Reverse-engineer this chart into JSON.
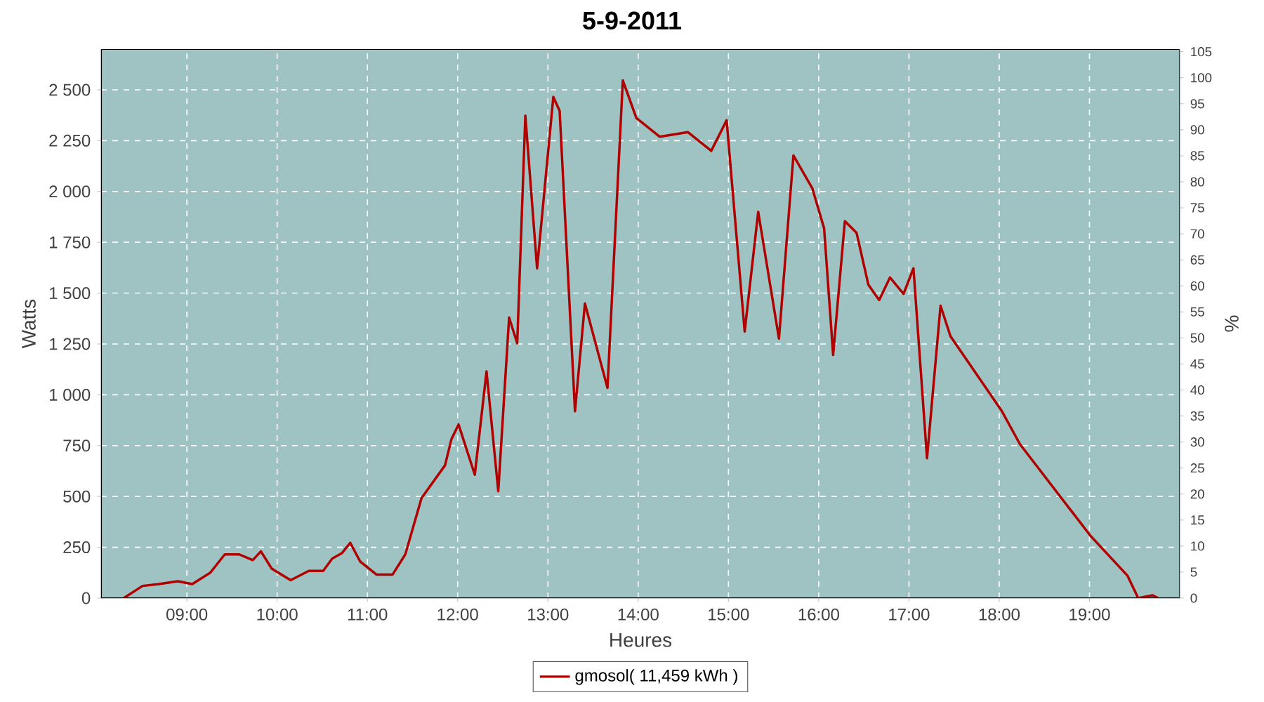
{
  "chart_data": {
    "type": "line",
    "title": "5-9-2011",
    "xlabel": "Heures",
    "ylabel": "Watts",
    "y2label": "%",
    "xlim": [
      8.05,
      20.0
    ],
    "ylim": [
      0,
      2700
    ],
    "y2lim": [
      0,
      105.5
    ],
    "xticks": [
      {
        "value": 9,
        "label": "09:00"
      },
      {
        "value": 10,
        "label": "10:00"
      },
      {
        "value": 11,
        "label": "11:00"
      },
      {
        "value": 12,
        "label": "12:00"
      },
      {
        "value": 13,
        "label": "13:00"
      },
      {
        "value": 14,
        "label": "14:00"
      },
      {
        "value": 15,
        "label": "15:00"
      },
      {
        "value": 16,
        "label": "16:00"
      },
      {
        "value": 17,
        "label": "17:00"
      },
      {
        "value": 18,
        "label": "18:00"
      },
      {
        "value": 19,
        "label": "19:00"
      }
    ],
    "yticks": [
      0,
      250,
      500,
      750,
      {
        "value": 1000,
        "label": "1 000"
      },
      {
        "value": 1250,
        "label": "1 250"
      },
      {
        "value": 1500,
        "label": "1 500"
      },
      {
        "value": 1750,
        "label": "1 750"
      },
      {
        "value": 2000,
        "label": "2 000"
      },
      {
        "value": 2250,
        "label": "2 250"
      },
      {
        "value": 2500,
        "label": "2 500"
      }
    ],
    "y2ticks": [
      0,
      5,
      10,
      15,
      20,
      25,
      30,
      35,
      40,
      45,
      50,
      55,
      60,
      65,
      70,
      75,
      80,
      85,
      90,
      95,
      100,
      105
    ],
    "grid": true,
    "legend": "bottom",
    "marker": "none",
    "line_style": "solid",
    "series": [
      {
        "name": "gmosol( 11,459 kWh )",
        "color": "#b00000",
        "x": [
          8.3,
          8.51,
          8.69,
          8.9,
          9.06,
          9.26,
          9.42,
          9.58,
          9.73,
          9.82,
          9.94,
          10.15,
          10.35,
          10.51,
          10.61,
          10.72,
          10.81,
          10.92,
          11.1,
          11.28,
          11.42,
          11.6,
          11.86,
          11.93,
          12.01,
          12.19,
          12.32,
          12.45,
          12.57,
          12.66,
          12.75,
          12.88,
          13.06,
          13.13,
          13.3,
          13.41,
          13.51,
          13.58,
          13.66,
          13.83,
          13.98,
          14.24,
          14.55,
          14.81,
          14.98,
          15.18,
          15.33,
          15.56,
          15.72,
          15.93,
          16.06,
          16.16,
          16.29,
          16.42,
          16.55,
          16.67,
          16.79,
          16.94,
          17.05,
          17.2,
          17.35,
          17.46,
          18.03,
          18.23,
          19.01,
          19.42,
          19.54,
          19.7,
          19.76
        ],
        "values": [
          0,
          60,
          69,
          83,
          69,
          125,
          215,
          215,
          187,
          230,
          145,
          88,
          134,
          134,
          194,
          222,
          272,
          180,
          116,
          116,
          215,
          492,
          653,
          780,
          854,
          607,
          1115,
          526,
          1380,
          1253,
          2373,
          1622,
          2465,
          2396,
          919,
          1449,
          null,
          null,
          1034,
          2546,
          2361,
          2269,
          2292,
          2200,
          2350,
          1311,
          1900,
          1276,
          2177,
          2015,
          1819,
          1196,
          1854,
          1796,
          1542,
          1466,
          1577,
          1496,
          1622,
          688,
          1438,
          1288,
          919,
          757,
          307,
          111,
          0,
          14,
          0
        ]
      }
    ]
  }
}
